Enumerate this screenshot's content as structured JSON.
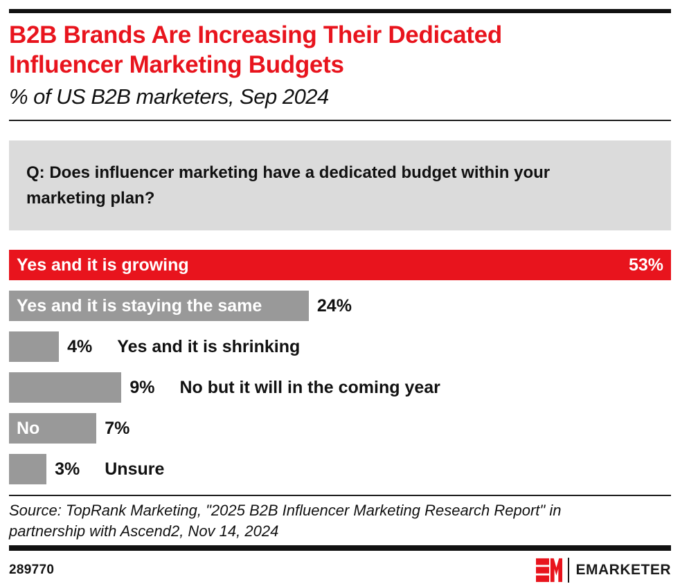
{
  "header": {
    "title_lines": [
      "B2B Brands Are Increasing Their Dedicated",
      "Influencer Marketing Budgets"
    ],
    "title": "B2B Brands Are Increasing Their Dedicated Influencer Marketing Budgets",
    "subtitle": "% of US B2B marketers, Sep 2024"
  },
  "question": "Q: Does influencer marketing have a dedicated budget within your marketing plan?",
  "chart_data": {
    "type": "bar",
    "orientation": "horizontal",
    "title": "B2B Brands Are Increasing Their Dedicated Influencer Marketing Budgets",
    "subtitle": "% of US B2B marketers, Sep 2024",
    "categories": [
      "Yes and it is growing",
      "Yes and it is staying the same",
      "Yes and it is shrinking",
      "No but it will in the coming year",
      "No",
      "Unsure"
    ],
    "values": [
      53,
      24,
      4,
      9,
      7,
      3
    ],
    "unit": "%",
    "xlim": [
      0,
      53
    ],
    "grid": false,
    "legend": false,
    "bars": [
      {
        "label": "Yes and it is growing",
        "value": 53,
        "value_text": "53%",
        "color": "red",
        "label_inside": true,
        "value_inside": true
      },
      {
        "label": "Yes and it is staying the same",
        "value": 24,
        "value_text": "24%",
        "color": "gray",
        "label_inside": true,
        "value_inside": false,
        "show_outside_label": false
      },
      {
        "label": "Yes and it is shrinking",
        "value": 4,
        "value_text": "4%",
        "color": "gray",
        "label_inside": false,
        "value_inside": false,
        "show_outside_label": true
      },
      {
        "label": "No but it will in the coming year",
        "value": 9,
        "value_text": "9%",
        "color": "gray",
        "label_inside": false,
        "value_inside": false,
        "show_outside_label": true
      },
      {
        "label": "No",
        "value": 7,
        "value_text": "7%",
        "color": "gray",
        "label_inside": true,
        "value_inside": false,
        "show_outside_label": false
      },
      {
        "label": "Unsure",
        "value": 3,
        "value_text": "3%",
        "color": "gray",
        "label_inside": false,
        "value_inside": false,
        "show_outside_label": true
      }
    ]
  },
  "source": {
    "line1": "Source: TopRank Marketing, \"2025 B2B Influencer Marketing Research Report\" in",
    "line2": "partnership with Ascend2, Nov 14, 2024",
    "full": "Source: TopRank Marketing, \"2025 B2B Influencer Marketing Research Report\" in partnership with Ascend2, Nov 14, 2024"
  },
  "footer": {
    "chart_id": "289770",
    "brand": "EMARKETER"
  },
  "colors": {
    "accent_red": "#e8141d",
    "bar_gray": "#999999",
    "question_bg": "#dbdbdb",
    "rule_black": "#111111",
    "inside_label_white": "#ffffff",
    "text_black": "#111111"
  }
}
